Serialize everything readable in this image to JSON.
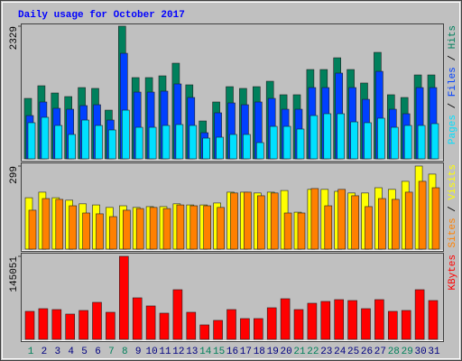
{
  "title": "Daily usage for October 2017",
  "legend_separator": " / ",
  "highlight_categories": [
    "1",
    "7",
    "8",
    "14",
    "15",
    "21",
    "22",
    "28",
    "29"
  ],
  "highlight_color": "#00805a",
  "chart_data": [
    {
      "type": "bar",
      "ylim": [
        0,
        2329
      ],
      "yticks": [
        2329
      ],
      "series": [
        {
          "name": "Hits",
          "color": "#00805c",
          "values": [
            1061,
            1283,
            1156,
            1093,
            1251,
            1236,
            855,
            2329,
            1426,
            1426,
            1457,
            1679,
            1299,
            665,
            998,
            1267,
            1236,
            1267,
            1362,
            1125,
            1125,
            1568,
            1568,
            1774,
            1568,
            1331,
            1869,
            1125,
            1077,
            1473,
            1473
          ]
        },
        {
          "name": "Files",
          "color": "#0040ff",
          "values": [
            760,
            998,
            887,
            871,
            935,
            950,
            681,
            1853,
            1172,
            1172,
            1188,
            1315,
            1077,
            459,
            808,
            982,
            950,
            998,
            1061,
            871,
            871,
            1251,
            1251,
            1505,
            1251,
            1045,
            1536,
            871,
            792,
            1251,
            1251
          ]
        },
        {
          "name": "Pages",
          "color": "#00e0ff",
          "values": [
            634,
            729,
            586,
            428,
            681,
            586,
            507,
            855,
            554,
            554,
            586,
            602,
            586,
            364,
            380,
            428,
            428,
            285,
            570,
            570,
            523,
            760,
            792,
            792,
            649,
            634,
            713,
            554,
            586,
            586,
            618
          ]
        }
      ]
    },
    {
      "type": "bar",
      "ylim": [
        0,
        299
      ],
      "yticks": [
        299
      ],
      "series": [
        {
          "name": "Visits",
          "color": "#ffff00",
          "values": [
            185,
            205,
            185,
            176,
            163,
            159,
            150,
            156,
            150,
            153,
            153,
            163,
            159,
            159,
            166,
            205,
            205,
            202,
            205,
            211,
            133,
            215,
            215,
            208,
            202,
            202,
            221,
            215,
            244,
            299,
            270
          ]
        },
        {
          "name": "Sites",
          "color": "#ff8000",
          "values": [
            140,
            182,
            179,
            156,
            130,
            127,
            117,
            140,
            146,
            150,
            146,
            159,
            156,
            156,
            150,
            202,
            205,
            192,
            202,
            130,
            130,
            218,
            156,
            215,
            192,
            153,
            182,
            179,
            205,
            244,
            221
          ]
        }
      ]
    },
    {
      "type": "bar",
      "ylim": [
        0,
        145051
      ],
      "yticks": [
        145051
      ],
      "categories": [
        "1",
        "2",
        "3",
        "4",
        "5",
        "6",
        "7",
        "8",
        "9",
        "10",
        "11",
        "12",
        "13",
        "14",
        "15",
        "16",
        "17",
        "18",
        "19",
        "20",
        "21",
        "22",
        "23",
        "24",
        "25",
        "26",
        "27",
        "28",
        "29",
        "30",
        "31"
      ],
      "series": [
        {
          "name": "KBytes",
          "color": "#ff0000",
          "values": [
            48887,
            53618,
            52041,
            44156,
            50464,
            64657,
            47310,
            145051,
            72542,
            58349,
            45733,
            86735,
            47310,
            25232,
            33117,
            52041,
            36271,
            36271,
            55195,
            70965,
            52041,
            63080,
            66234,
            69388,
            67811,
            53618,
            69388,
            48887,
            50464,
            86735,
            67811
          ]
        }
      ]
    }
  ]
}
